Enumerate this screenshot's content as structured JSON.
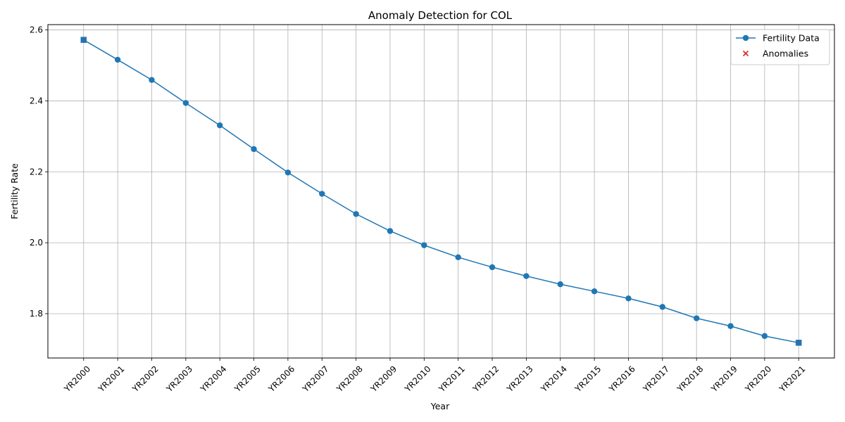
{
  "chart_data": {
    "type": "line",
    "title": "Anomaly Detection for COL",
    "xlabel": "Year",
    "ylabel": "Fertility Rate",
    "categories": [
      "YR2000",
      "YR2001",
      "YR2002",
      "YR2003",
      "YR2004",
      "YR2005",
      "YR2006",
      "YR2007",
      "YR2008",
      "YR2009",
      "YR2010",
      "YR2011",
      "YR2012",
      "YR2013",
      "YR2014",
      "YR2015",
      "YR2016",
      "YR2017",
      "YR2018",
      "YR2019",
      "YR2020",
      "YR2021"
    ],
    "series": [
      {
        "name": "Fertility Data",
        "color": "#1f77b4",
        "marker": "circle",
        "values": [
          2.572,
          2.516,
          2.459,
          2.394,
          2.331,
          2.264,
          2.198,
          2.138,
          2.081,
          2.033,
          1.993,
          1.959,
          1.931,
          1.906,
          1.883,
          1.863,
          1.843,
          1.819,
          1.787,
          1.765,
          1.737,
          1.718
        ]
      },
      {
        "name": "Anomalies",
        "color": "#d62728",
        "marker": "x",
        "points": [
          {
            "x": "YR2000",
            "y": 2.572
          },
          {
            "x": "YR2021",
            "y": 1.718
          }
        ]
      }
    ],
    "yticks": [
      1.8,
      2.0,
      2.2,
      2.4,
      2.6
    ],
    "ylim": [
      1.675,
      2.615
    ],
    "grid": true,
    "legend_position": "top-right"
  }
}
